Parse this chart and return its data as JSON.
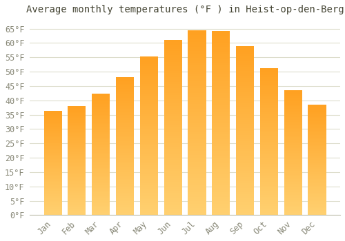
{
  "title": "Average monthly temperatures (°F ) in Heist-op-den-Berg",
  "months": [
    "Jan",
    "Feb",
    "Mar",
    "Apr",
    "May",
    "Jun",
    "Jul",
    "Aug",
    "Sep",
    "Oct",
    "Nov",
    "Dec"
  ],
  "values": [
    36.3,
    38.1,
    42.4,
    48.2,
    55.4,
    61.0,
    64.4,
    64.2,
    59.0,
    51.3,
    43.5,
    38.5
  ],
  "bar_color": "#FFA830",
  "bar_color_light": "#FFD070",
  "background_color": "#FFFFFF",
  "grid_color": "#DDDDCC",
  "text_color": "#888877",
  "title_color": "#444433",
  "ylim": [
    0,
    68
  ],
  "yticks": [
    0,
    5,
    10,
    15,
    20,
    25,
    30,
    35,
    40,
    45,
    50,
    55,
    60,
    65
  ],
  "ytick_labels": [
    "0°F",
    "5°F",
    "10°F",
    "15°F",
    "20°F",
    "25°F",
    "30°F",
    "35°F",
    "40°F",
    "45°F",
    "50°F",
    "55°F",
    "60°F",
    "65°F"
  ],
  "title_fontsize": 10,
  "tick_fontsize": 8.5,
  "figsize": [
    5.0,
    3.5
  ],
  "dpi": 100
}
